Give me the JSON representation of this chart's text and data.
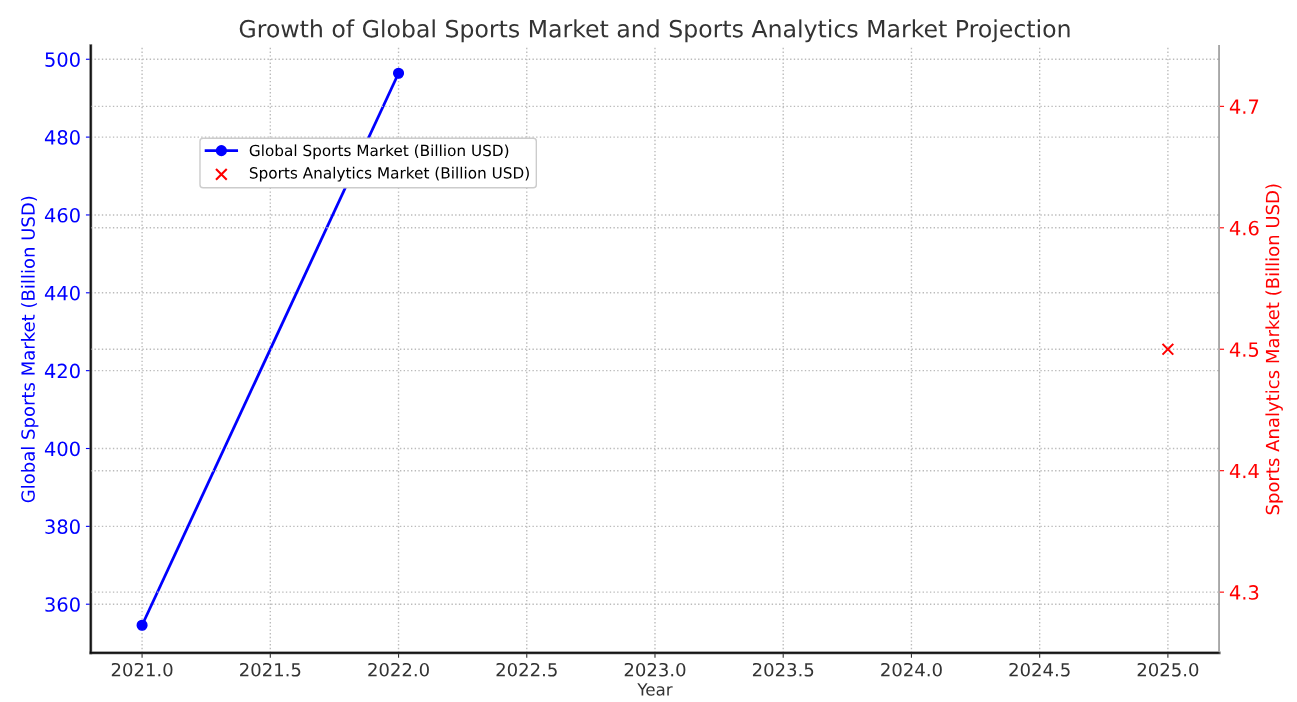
{
  "chart_data": {
    "type": "line",
    "title": "Growth of Global Sports Market and Sports Analytics Market Projection",
    "xlabel": "Year",
    "ylabel": "Global Sports Market (Billion USD)",
    "y2label": "Sports Analytics Market (Billion USD)",
    "series": [
      {
        "name": "Global Sports Market (Billion USD)",
        "color": "#0000ff",
        "marker": "circle",
        "line_style": "solid",
        "x": [
          2021,
          2022
        ],
        "values": [
          354.6,
          496.4
        ]
      },
      {
        "name": "Sports Analytics Market (Billion USD)",
        "type": "scatter",
        "color": "#ff0000",
        "marker": "cross",
        "axis": "y2",
        "x": [
          2025
        ],
        "values": [
          4.5
        ]
      }
    ],
    "xlim": [
      2020.8,
      2025.2
    ],
    "xticks": [
      {
        "value": 2021,
        "label": "2021.0"
      },
      {
        "value": 2021.5,
        "label": "2021.5"
      },
      {
        "value": 2022,
        "label": "2022.0"
      },
      {
        "value": 2022.5,
        "label": "2022.5"
      },
      {
        "value": 2023,
        "label": "2023.0"
      },
      {
        "value": 2023.5,
        "label": "2023.5"
      },
      {
        "value": 2024,
        "label": "2024.0"
      },
      {
        "value": 2024.5,
        "label": "2024.5"
      },
      {
        "value": 2025,
        "label": "2025.0"
      }
    ],
    "ylim": [
      347.5,
      503.5
    ],
    "yticks": [
      360,
      380,
      400,
      420,
      440,
      460,
      480,
      500
    ],
    "y2lim": [
      4.25,
      4.75
    ],
    "y2ticks": [
      4.3,
      4.4,
      4.5,
      4.6,
      4.7
    ],
    "grid": true,
    "legend": "top left"
  }
}
